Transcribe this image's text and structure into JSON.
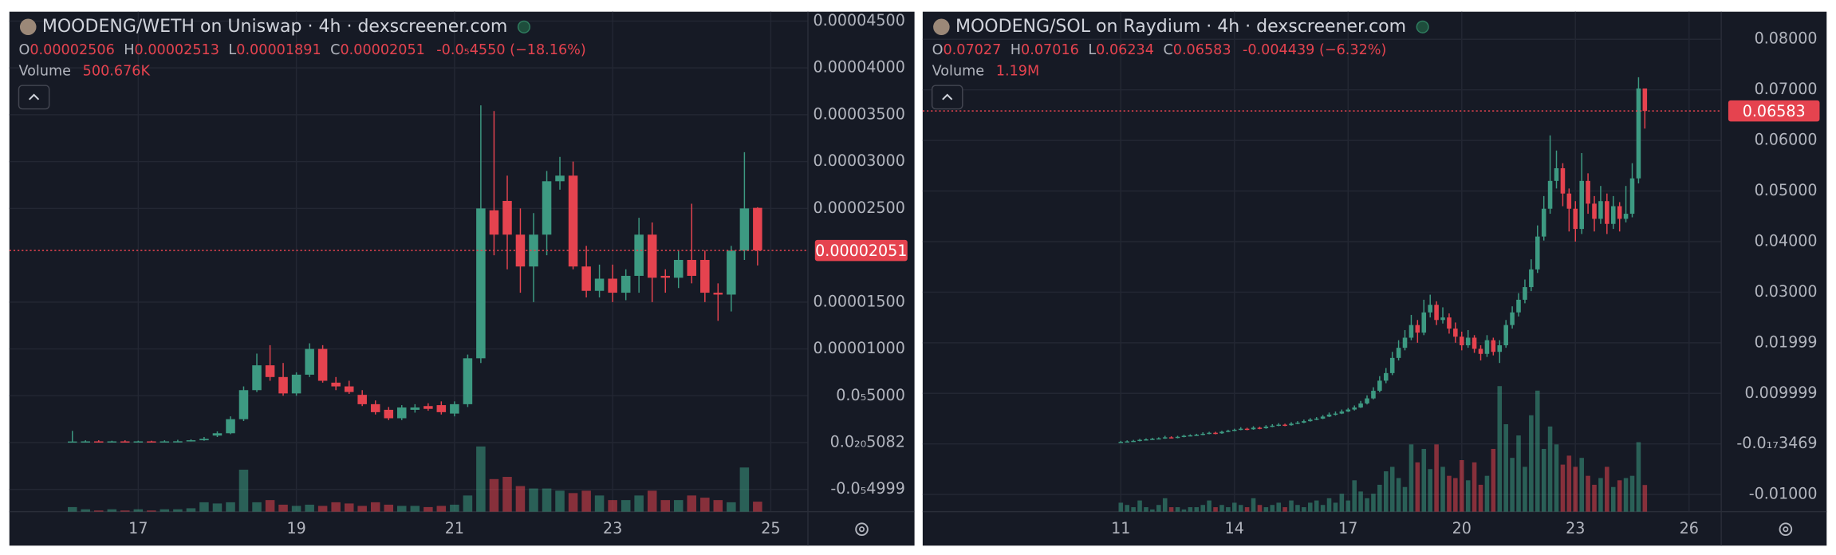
{
  "chart_data": [
    {
      "type": "candlestick",
      "title": "MOODENG/WETH on Uniswap · 4h · dexscreener.com",
      "ohlc_keys": [
        "O",
        "H",
        "L",
        "C"
      ],
      "ohlc_values": [
        "0.00002506",
        "0.00002513",
        "0.00001891",
        "0.00002051"
      ],
      "change": "-0.0₅4550 (−18.16%)",
      "volume_label": "Volume",
      "volume_value": "500.676K",
      "up_color": "#3d9a82",
      "down_color": "#e5434f",
      "grid": true,
      "xlim": [
        15.37,
        25.47
      ],
      "xticks": [
        17,
        19,
        21,
        23,
        25
      ],
      "ylim": [
        -7.375e-06,
        4.6e-05
      ],
      "yticks": [
        {
          "value": 4.5e-05,
          "label": "0.00004500"
        },
        {
          "value": 4e-05,
          "label": "0.00004000"
        },
        {
          "value": 3.5e-05,
          "label": "0.00003500"
        },
        {
          "value": 3e-05,
          "label": "0.00003000"
        },
        {
          "value": 2.5e-05,
          "label": "0.00002500"
        },
        {
          "value": 1.5e-05,
          "label": "0.00001500"
        },
        {
          "value": 1e-05,
          "label": "0.00001000"
        },
        {
          "value": 5e-06,
          "label": "0.0₅5000"
        },
        {
          "value": 5.082e-21,
          "label": "0.0₂₀5082"
        },
        {
          "value": -4.999e-06,
          "label": "-0.0₅4999"
        }
      ],
      "last_price": 2.051e-05,
      "vlim": [
        0,
        25000000
      ],
      "x": [
        16.167,
        16.333,
        16.5,
        16.667,
        16.833,
        17,
        17.167,
        17.333,
        17.5,
        17.667,
        17.833,
        18,
        18.167,
        18.333,
        18.5,
        18.667,
        18.833,
        19,
        19.167,
        19.333,
        19.5,
        19.667,
        19.833,
        20,
        20.167,
        20.333,
        20.5,
        20.667,
        20.833,
        21,
        21.167,
        21.333,
        21.5,
        21.667,
        21.833,
        22,
        22.167,
        22.333,
        22.5,
        22.667,
        22.833,
        23,
        23.167,
        23.333,
        23.5,
        23.667,
        23.833,
        24,
        24.167,
        24.333,
        24.5,
        24.667,
        24.833
      ],
      "open": [
        1e-07,
        1.2e-07,
        1.3e-07,
        1.2e-07,
        1.3e-07,
        1.2e-07,
        1.3e-07,
        1.2e-07,
        1.3e-07,
        1.4e-07,
        2.5e-07,
        7.5e-07,
        1e-06,
        2.5e-06,
        5.6e-06,
        8.25e-06,
        7e-06,
        5.25e-06,
        7.25e-06,
        1e-05,
        6.4e-06,
        6e-06,
        5.1e-06,
        4.1e-06,
        3.5e-06,
        2.6e-06,
        3.5e-06,
        3.9e-06,
        4e-06,
        3.1e-06,
        4.1e-06,
        9e-06,
        2.48e-05,
        2.58e-05,
        2.22e-05,
        1.88e-05,
        2.22e-05,
        2.79e-05,
        2.85e-05,
        1.88e-05,
        1.62e-05,
        1.75e-05,
        1.6e-05,
        1.78e-05,
        2.22e-05,
        1.78e-05,
        1.76e-05,
        1.95e-05,
        1.95e-05,
        1.6e-05,
        1.58e-05,
        2.05e-05,
        2.506e-05
      ],
      "high": [
        1.25e-06,
        2.5e-07,
        2.5e-07,
        2e-07,
        2.5e-07,
        2e-07,
        2e-07,
        2.5e-07,
        3e-07,
        3.5e-07,
        6e-07,
        1.2e-06,
        2.8e-06,
        6e-06,
        9.5e-06,
        1.04e-05,
        8.5e-06,
        7.5e-06,
        1.06e-05,
        1.04e-05,
        7e-06,
        6.6e-06,
        5.6e-06,
        4.5e-06,
        3.8e-06,
        4e-06,
        4.1e-06,
        4.2e-06,
        4.4e-06,
        4.4e-06,
        9.4e-06,
        3.6e-05,
        3.54e-05,
        2.85e-05,
        2.5e-05,
        2.45e-05,
        2.9e-05,
        3.05e-05,
        3e-05,
        2.1e-05,
        1.9e-05,
        1.9e-05,
        1.85e-05,
        2.4e-05,
        2.35e-05,
        1.85e-05,
        2.05e-05,
        2.55e-05,
        2.05e-05,
        1.7e-05,
        2.1e-05,
        3.1e-05,
        2.513e-05
      ],
      "low": [
        5e-08,
        1e-07,
        1e-07,
        1e-07,
        1e-07,
        1e-07,
        1e-07,
        1e-07,
        1.1e-07,
        1.2e-07,
        2e-07,
        6e-07,
        9e-07,
        2.3e-06,
        5.4e-06,
        6.6e-06,
        5e-06,
        5e-06,
        7e-06,
        6.4e-06,
        5.6e-06,
        5.2e-06,
        3.9e-06,
        3e-06,
        2.4e-06,
        2.4e-06,
        3.2e-06,
        3.4e-06,
        3e-06,
        2.8e-06,
        3.8e-06,
        8.5e-06,
        2e-05,
        1.85e-05,
        1.6e-05,
        1.5e-05,
        2e-05,
        2.7e-05,
        1.85e-05,
        1.55e-05,
        1.55e-05,
        1.5e-05,
        1.52e-05,
        1.6e-05,
        1.5e-05,
        1.6e-05,
        1.65e-05,
        1.7e-05,
        1.5e-05,
        1.3e-05,
        1.4e-05,
        1.95e-05,
        1.891e-05
      ],
      "close": [
        1.2e-07,
        1.3e-07,
        1.2e-07,
        1.3e-07,
        1.2e-07,
        1.3e-07,
        1.2e-07,
        1.3e-07,
        1.4e-07,
        2.5e-07,
        4e-07,
        1e-06,
        2.5e-06,
        5.6e-06,
        8.25e-06,
        7e-06,
        5.25e-06,
        7.25e-06,
        1e-05,
        6.6e-06,
        6e-06,
        5.4e-06,
        4.1e-06,
        3.25e-06,
        2.6e-06,
        3.75e-06,
        3.75e-06,
        3.6e-06,
        3.25e-06,
        4.1e-06,
        9e-06,
        2.5e-05,
        2.22e-05,
        2.22e-05,
        1.88e-05,
        2.22e-05,
        2.79e-05,
        2.85e-05,
        1.88e-05,
        1.62e-05,
        1.75e-05,
        1.6e-05,
        1.78e-05,
        2.22e-05,
        1.76e-05,
        1.76e-05,
        1.95e-05,
        1.78e-05,
        1.6e-05,
        1.58e-05,
        2.05e-05,
        2.5e-05,
        2.051e-05
      ],
      "volume": [
        230000.0,
        120000.0,
        60000.0,
        120000.0,
        60000.0,
        120000.0,
        60000.0,
        120000.0,
        120000.0,
        170000.0,
        470000.0,
        410000.0,
        470000.0,
        2100000.0,
        470000.0,
        580000.0,
        350000.0,
        290000.0,
        350000.0,
        290000.0,
        470000.0,
        410000.0,
        290000.0,
        470000.0,
        350000.0,
        290000.0,
        290000.0,
        230000.0,
        290000.0,
        350000.0,
        810000.0,
        3260000.0,
        1630000.0,
        1740000.0,
        1280000.0,
        1160000.0,
        1160000.0,
        1050000.0,
        930000.0,
        1050000.0,
        810000.0,
        580000.0,
        580000.0,
        810000.0,
        1050000.0,
        580000.0,
        580000.0,
        810000.0,
        700000.0,
        580000.0,
        470000.0,
        2210000.0,
        500676
      ]
    },
    {
      "type": "candlestick",
      "title": "MOODENG/SOL on Raydium · 4h · dexscreener.com",
      "ohlc_keys": [
        "O",
        "H",
        "L",
        "C"
      ],
      "ohlc_values": [
        "0.07027",
        "0.07016",
        "0.06234",
        "0.06583"
      ],
      "change": "-0.004439 (−6.32%)",
      "volume_label": "Volume",
      "volume_value": "1.19M",
      "up_color": "#3d9a82",
      "down_color": "#e5434f",
      "grid": true,
      "xlim": [
        5.77,
        26.85
      ],
      "xticks": [
        11,
        14,
        17,
        20,
        23,
        26
      ],
      "ylim": [
        -0.0134,
        0.08545
      ],
      "yticks": [
        {
          "value": 0.08,
          "label": "0.08000"
        },
        {
          "value": 0.07,
          "label": "0.07000"
        },
        {
          "value": 0.06,
          "label": "0.06000"
        },
        {
          "value": 0.05,
          "label": "0.05000"
        },
        {
          "value": 0.04,
          "label": "0.04000"
        },
        {
          "value": 0.03,
          "label": "0.03000"
        },
        0.01999,
        0.009999,
        {
          "value": -3.469e-18,
          "label": "-0.0₁₇3469"
        },
        {
          "value": -0.01,
          "label": "-0.01000"
        }
      ],
      "last_price": 0.06583,
      "vlim": [
        0,
        22300000
      ],
      "x": [
        11,
        11.167,
        11.333,
        11.5,
        11.667,
        11.833,
        12,
        12.167,
        12.333,
        12.5,
        12.667,
        12.833,
        13,
        13.167,
        13.333,
        13.5,
        13.667,
        13.833,
        14,
        14.167,
        14.333,
        14.5,
        14.667,
        14.833,
        15,
        15.167,
        15.333,
        15.5,
        15.667,
        15.833,
        16,
        16.167,
        16.333,
        16.5,
        16.667,
        16.833,
        17,
        17.167,
        17.333,
        17.5,
        17.667,
        17.833,
        18,
        18.167,
        18.333,
        18.5,
        18.667,
        18.833,
        19,
        19.167,
        19.333,
        19.5,
        19.667,
        19.833,
        20,
        20.167,
        20.333,
        20.5,
        20.667,
        20.833,
        21,
        21.167,
        21.333,
        21.5,
        21.667,
        21.833,
        22,
        22.167,
        22.333,
        22.5,
        22.667,
        22.833,
        23,
        23.167,
        23.333,
        23.5,
        23.667,
        23.833,
        24,
        24.167,
        24.333,
        24.5,
        24.667,
        24.833
      ],
      "open": [
        0.0003,
        0.0004,
        0.0005,
        0.0006,
        0.0008,
        0.0009,
        0.001,
        0.0011,
        0.0013,
        0.0012,
        0.0014,
        0.0016,
        0.0017,
        0.0018,
        0.002,
        0.0022,
        0.0021,
        0.0024,
        0.0026,
        0.0028,
        0.003,
        0.0029,
        0.0032,
        0.0031,
        0.0034,
        0.0036,
        0.0038,
        0.0037,
        0.004,
        0.0042,
        0.0045,
        0.0048,
        0.005,
        0.0054,
        0.0058,
        0.006,
        0.0064,
        0.0068,
        0.0072,
        0.008,
        0.009,
        0.0105,
        0.0125,
        0.014,
        0.017,
        0.019,
        0.021,
        0.0235,
        0.022,
        0.026,
        0.0275,
        0.0245,
        0.025,
        0.0228,
        0.0212,
        0.0195,
        0.021,
        0.0188,
        0.0178,
        0.0205,
        0.0182,
        0.0195,
        0.0235,
        0.026,
        0.0285,
        0.031,
        0.0345,
        0.041,
        0.0465,
        0.052,
        0.0545,
        0.0495,
        0.0465,
        0.0425,
        0.052,
        0.0475,
        0.0445,
        0.048,
        0.0435,
        0.047,
        0.0445,
        0.0455,
        0.0525,
        0.07027
      ],
      "high": [
        0.0006,
        0.0007,
        0.0008,
        0.001,
        0.0011,
        0.0012,
        0.0013,
        0.0016,
        0.0015,
        0.0016,
        0.0018,
        0.0019,
        0.002,
        0.0023,
        0.0024,
        0.0024,
        0.0026,
        0.0028,
        0.003,
        0.0033,
        0.0032,
        0.0035,
        0.0034,
        0.0037,
        0.0039,
        0.0041,
        0.004,
        0.0043,
        0.0045,
        0.0048,
        0.0051,
        0.0053,
        0.0057,
        0.0062,
        0.0064,
        0.0068,
        0.0071,
        0.0076,
        0.0085,
        0.0096,
        0.0112,
        0.0134,
        0.015,
        0.0182,
        0.0205,
        0.0225,
        0.0255,
        0.0245,
        0.0285,
        0.0295,
        0.0282,
        0.027,
        0.0258,
        0.024,
        0.0222,
        0.0225,
        0.0215,
        0.0195,
        0.0215,
        0.021,
        0.0205,
        0.0245,
        0.0272,
        0.0298,
        0.0325,
        0.0365,
        0.0432,
        0.049,
        0.061,
        0.058,
        0.0555,
        0.0505,
        0.048,
        0.0575,
        0.0535,
        0.049,
        0.051,
        0.0495,
        0.049,
        0.0478,
        0.051,
        0.0555,
        0.0725,
        0.07016
      ],
      "low": [
        0.0002,
        0.0003,
        0.0004,
        0.0005,
        0.0007,
        0.0008,
        0.0009,
        0.001,
        0.0011,
        0.0011,
        0.0013,
        0.0015,
        0.0016,
        0.0017,
        0.0019,
        0.0019,
        0.002,
        0.0023,
        0.0025,
        0.0027,
        0.0027,
        0.0028,
        0.0029,
        0.003,
        0.0033,
        0.0035,
        0.0035,
        0.0036,
        0.0039,
        0.0041,
        0.0044,
        0.0047,
        0.0049,
        0.0053,
        0.0056,
        0.0059,
        0.0063,
        0.0066,
        0.0071,
        0.0078,
        0.0088,
        0.0102,
        0.012,
        0.0136,
        0.0165,
        0.0185,
        0.0205,
        0.02,
        0.0215,
        0.025,
        0.0235,
        0.0238,
        0.0218,
        0.02,
        0.0185,
        0.019,
        0.018,
        0.0165,
        0.0172,
        0.0175,
        0.016,
        0.019,
        0.0228,
        0.0252,
        0.0278,
        0.0302,
        0.0338,
        0.0402,
        0.0455,
        0.0505,
        0.047,
        0.042,
        0.04,
        0.0415,
        0.0455,
        0.042,
        0.0435,
        0.0415,
        0.0425,
        0.042,
        0.0438,
        0.0448,
        0.0515,
        0.06234
      ],
      "close": [
        0.0004,
        0.0005,
        0.0006,
        0.0008,
        0.0009,
        0.001,
        0.0011,
        0.0013,
        0.0012,
        0.0014,
        0.0016,
        0.0017,
        0.0018,
        0.002,
        0.0022,
        0.0021,
        0.0024,
        0.0026,
        0.0028,
        0.003,
        0.0029,
        0.0032,
        0.0031,
        0.0034,
        0.0036,
        0.0038,
        0.0037,
        0.004,
        0.0042,
        0.0045,
        0.0048,
        0.005,
        0.0054,
        0.0058,
        0.006,
        0.0064,
        0.0068,
        0.0072,
        0.008,
        0.009,
        0.0105,
        0.0125,
        0.014,
        0.017,
        0.019,
        0.021,
        0.0235,
        0.022,
        0.026,
        0.0275,
        0.0245,
        0.025,
        0.0228,
        0.0212,
        0.0195,
        0.021,
        0.0188,
        0.0178,
        0.0205,
        0.0182,
        0.0195,
        0.0235,
        0.026,
        0.0285,
        0.031,
        0.0345,
        0.041,
        0.0465,
        0.052,
        0.0545,
        0.0495,
        0.0465,
        0.0425,
        0.052,
        0.0475,
        0.0445,
        0.048,
        0.0435,
        0.047,
        0.0445,
        0.0455,
        0.0525,
        0.07027,
        0.06583
      ],
      "volume": [
        400000.0,
        300000.0,
        200000.0,
        500000.0,
        200000.0,
        100000.0,
        300000.0,
        600000.0,
        200000.0,
        200000.0,
        100000.0,
        200000.0,
        200000.0,
        300000.0,
        500000.0,
        200000.0,
        300000.0,
        200000.0,
        400000.0,
        300000.0,
        200000.0,
        600000.0,
        300000.0,
        200000.0,
        300000.0,
        400000.0,
        200000.0,
        500000.0,
        300000.0,
        200000.0,
        400000.0,
        500000.0,
        300000.0,
        600000.0,
        400000.0,
        800000.0,
        500000.0,
        1400000.0,
        900000.0,
        600000.0,
        800000.0,
        1200000.0,
        1800000.0,
        2000000.0,
        1500000.0,
        1100000.0,
        3000000.0,
        2200000.0,
        2800000.0,
        1900000.0,
        3000000.0,
        2000000.0,
        1600000.0,
        1500000.0,
        2300000.0,
        1400000.0,
        2200000.0,
        1200000.0,
        1600000.0,
        2800000.0,
        5600000.0,
        3900000.0,
        2400000.0,
        3400000.0,
        2000000.0,
        4300000.0,
        5400000.0,
        2800000.0,
        3800000.0,
        3000000.0,
        2100000.0,
        2500000.0,
        2000000.0,
        2400000.0,
        1600000.0,
        1200000.0,
        1500000.0,
        2000000.0,
        1100000.0,
        1400000.0,
        1500000.0,
        1600000.0,
        3100000.0,
        1190000.0
      ]
    }
  ]
}
